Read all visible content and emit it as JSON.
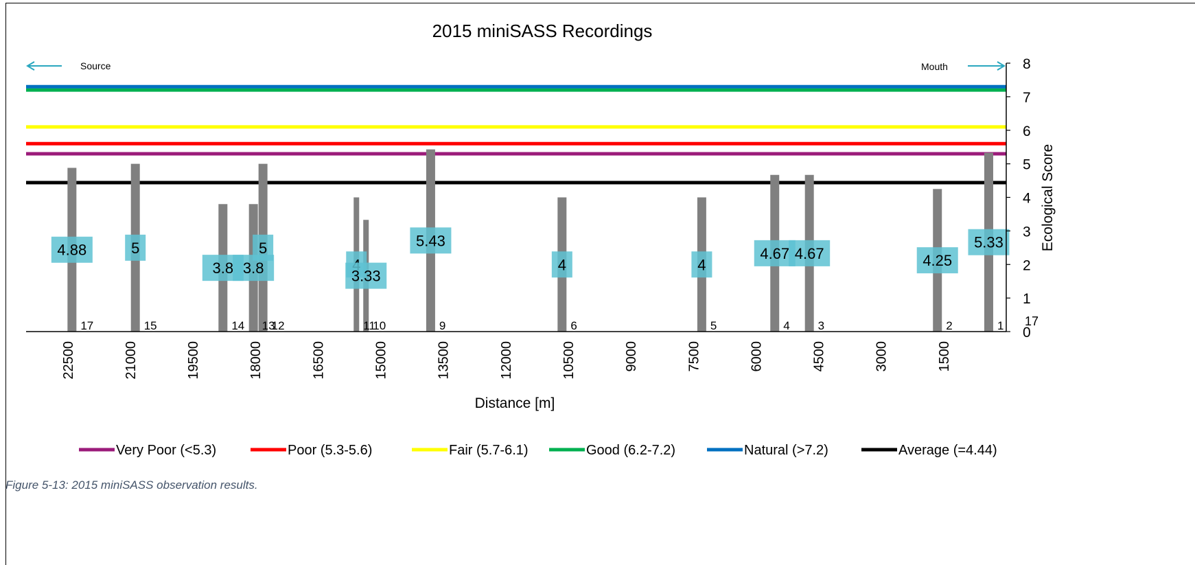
{
  "chart_data": {
    "type": "bar",
    "title": "2015 miniSASS Recordings",
    "xlabel": "Distance [m]",
    "ylabel": "Ecological Score",
    "ylim": [
      0,
      8
    ],
    "yticks": [
      "0",
      "1",
      "2",
      "3",
      "4",
      "5",
      "6",
      "7",
      "8"
    ],
    "xlim": [
      23500,
      0
    ],
    "xticks": [
      "22500",
      "21000",
      "19500",
      "18000",
      "16500",
      "15000",
      "13500",
      "12000",
      "10500",
      "9000",
      "7500",
      "6000",
      "4500",
      "3000",
      "1500"
    ],
    "x_tick_values": [
      22500,
      21000,
      19500,
      18000,
      16500,
      15000,
      13500,
      12000,
      10500,
      9000,
      7500,
      6000,
      4500,
      3000,
      1500
    ],
    "direction_labels": {
      "source": "Source",
      "mouth": "Mouth"
    },
    "points": [
      {
        "site": "17",
        "distance": 22400,
        "score": 4.88,
        "label": "4.88"
      },
      {
        "site": "15",
        "distance": 20880,
        "score": 5,
        "label": "5"
      },
      {
        "site": "14",
        "distance": 18780,
        "score": 3.8,
        "label": "3.8"
      },
      {
        "site": "13",
        "distance": 18050,
        "score": 3.8,
        "label": "3.8"
      },
      {
        "site": "12",
        "distance": 17820,
        "score": 5,
        "label": "5"
      },
      {
        "site": "11",
        "distance": 15580,
        "score": 4,
        "label": "4"
      },
      {
        "site": "10",
        "distance": 15350,
        "score": 3.33,
        "label": "3.33"
      },
      {
        "site": "9",
        "distance": 13800,
        "score": 5.43,
        "label": "5.43"
      },
      {
        "site": "6",
        "distance": 10650,
        "score": 4,
        "label": "4"
      },
      {
        "site": "5",
        "distance": 7300,
        "score": 4,
        "label": "4"
      },
      {
        "site": "4",
        "distance": 5550,
        "score": 4.67,
        "label": "4.67"
      },
      {
        "site": "3",
        "distance": 4720,
        "score": 4.67,
        "label": "4.67"
      },
      {
        "site": "2",
        "distance": 1650,
        "score": 4.25,
        "label": "4.25"
      },
      {
        "site": "1",
        "distance": 420,
        "score": 5.33,
        "label": "5.33"
      }
    ],
    "extra_axis_label": "17",
    "reference_lines": [
      {
        "name": "Very Poor (<5.3)",
        "value": 5.3,
        "color": "#9b1b7a"
      },
      {
        "name": "Poor (5.3-5.6)",
        "value": 5.6,
        "color": "#ff0000"
      },
      {
        "name": "Fair (5.7-6.1)",
        "value": 6.1,
        "color": "#ffff00"
      },
      {
        "name": "Good (6.2-7.2)",
        "value": 7.2,
        "color": "#00b050"
      },
      {
        "name": "Natural (>7.2)",
        "value": 7.3,
        "color": "#0070c0"
      },
      {
        "name": "Average (=4.44)",
        "value": 4.44,
        "color": "#000000"
      }
    ],
    "bar_color": "#808080",
    "label_box_color": "#5ec2d2",
    "arrow_color": "#2aa7bf",
    "grid": false,
    "legend_position": "bottom"
  },
  "caption": "Figure 5-13: 2015 miniSASS observation results."
}
